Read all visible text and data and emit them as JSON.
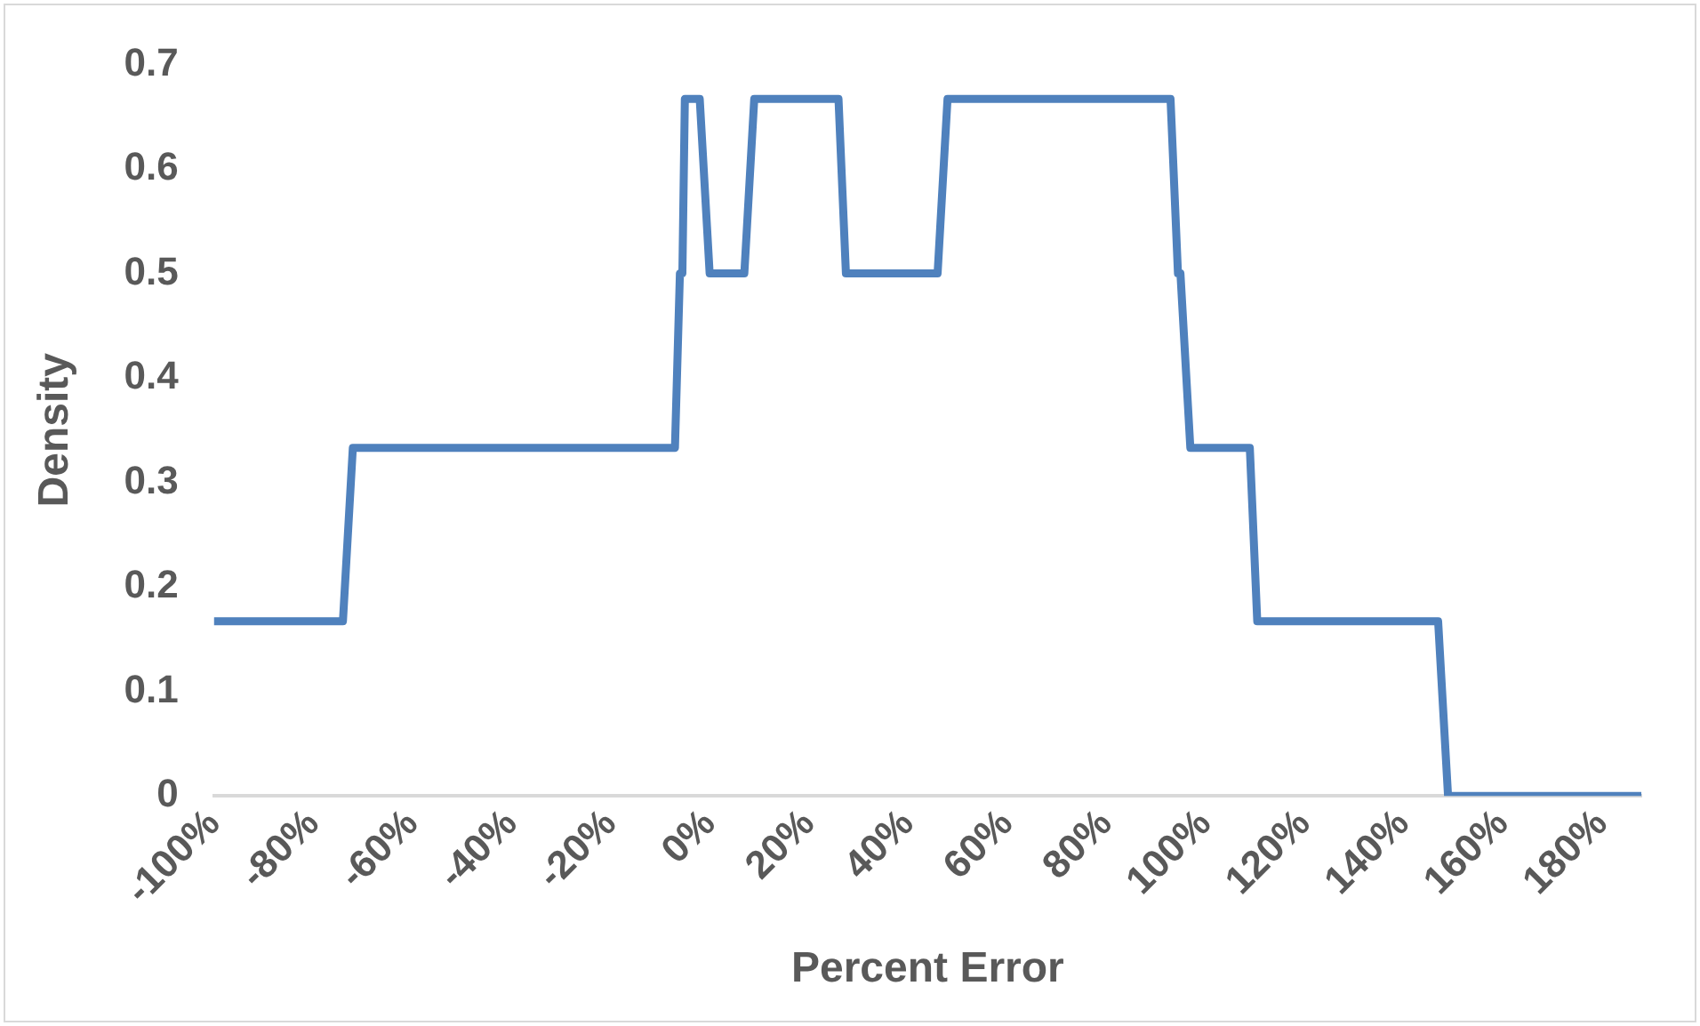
{
  "chart_data": {
    "type": "line",
    "xlabel": "Percent Error",
    "ylabel": "Density",
    "x": [
      -100,
      -74,
      -72,
      -7,
      -6,
      -5.5,
      -5,
      -2,
      0,
      7,
      9,
      26,
      27.5,
      46,
      48,
      93,
      94.5,
      95,
      97,
      109,
      110.5,
      147,
      149,
      188
    ],
    "series": [
      {
        "color": "#4f81bd",
        "values": [
          0.167,
          0.167,
          0.333,
          0.333,
          0.5,
          0.5,
          0.667,
          0.667,
          0.5,
          0.5,
          0.667,
          0.667,
          0.5,
          0.5,
          0.667,
          0.667,
          0.5,
          0.5,
          0.333,
          0.333,
          0.167,
          0.167,
          0,
          0
        ]
      }
    ],
    "xlim": [
      -100,
      188
    ],
    "xticks": [
      {
        "value": -100,
        "label": "-100%"
      },
      {
        "value": -80,
        "label": "-80%"
      },
      {
        "value": -60,
        "label": "-60%"
      },
      {
        "value": -40,
        "label": "-40%"
      },
      {
        "value": -20,
        "label": "-20%"
      },
      {
        "value": 0,
        "label": "0%"
      },
      {
        "value": 20,
        "label": "20%"
      },
      {
        "value": 40,
        "label": "40%"
      },
      {
        "value": 60,
        "label": "60%"
      },
      {
        "value": 80,
        "label": "80%"
      },
      {
        "value": 100,
        "label": "100%"
      },
      {
        "value": 120,
        "label": "120%"
      },
      {
        "value": 140,
        "label": "140%"
      },
      {
        "value": 160,
        "label": "160%"
      },
      {
        "value": 180,
        "label": "180%"
      }
    ],
    "ylim": [
      0,
      0.7
    ],
    "yticks": [
      0,
      0.1,
      0.2,
      0.3,
      0.4,
      0.5,
      0.6,
      0.7
    ],
    "grid": false,
    "legend": false,
    "marker": "none",
    "line_style": "solid"
  }
}
